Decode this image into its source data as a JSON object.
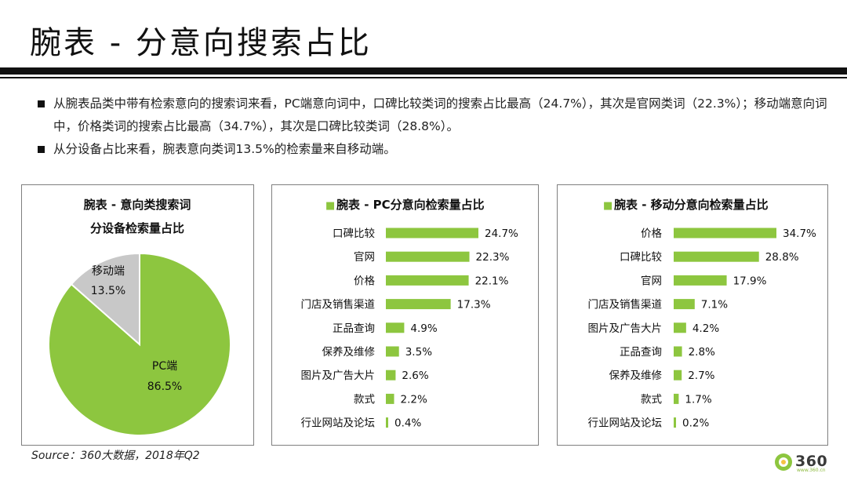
{
  "page": {
    "title": "腕表 - 分意向搜索占比",
    "bullets": [
      "从腕表品类中带有检索意向的搜索词来看，PC端意向词中，口碑比较类词的搜索占比最高（24.7%），其次是官网类词（22.3%）；移动端意向词中，价格类词的搜索占比最高（34.7%），其次是口碑比较类词（28.8%）。",
      "从分设备占比来看，腕表意向类词13.5%的检索量来自移动端。"
    ],
    "source": "Source：360大数据，2018年Q2",
    "logo_text": "360",
    "logo_sub": "www.360.cn"
  },
  "colors": {
    "green": "#8dc63f",
    "gray": "#c8c8c8",
    "border": "#7f7f7f"
  },
  "chart_data": [
    {
      "type": "pie",
      "title_lines": [
        "腕表 - 意向类搜索词",
        "分设备检索量占比"
      ],
      "slices": [
        {
          "label": "PC端",
          "value": 86.5,
          "display": "86.5%"
        },
        {
          "label": "移动端",
          "value": 13.5,
          "display": "13.5%"
        }
      ]
    },
    {
      "type": "bar",
      "orientation": "horizontal",
      "title": "腕表 - PC分意向检索量占比",
      "legend_marker": "■",
      "categories": [
        "口碑比较",
        "官网",
        "价格",
        "门店及销售渠道",
        "正品查询",
        "保养及维修",
        "图片及广告大片",
        "款式",
        "行业网站及论坛"
      ],
      "values": [
        24.7,
        22.3,
        22.1,
        17.3,
        4.9,
        3.5,
        2.6,
        2.2,
        0.4
      ],
      "value_labels": [
        "24.7%",
        "22.3%",
        "22.1%",
        "17.3%",
        "4.9%",
        "3.5%",
        "2.6%",
        "2.2%",
        "0.4%"
      ]
    },
    {
      "type": "bar",
      "orientation": "horizontal",
      "title": "腕表 - 移动分意向检索量占比",
      "legend_marker": "■",
      "categories": [
        "价格",
        "口碑比较",
        "官网",
        "门店及销售渠道",
        "图片及广告大片",
        "正品查询",
        "保养及维修",
        "款式",
        "行业网站及论坛"
      ],
      "values": [
        34.7,
        28.8,
        17.9,
        7.1,
        4.2,
        2.8,
        2.7,
        1.7,
        0.2
      ],
      "value_labels": [
        "34.7%",
        "28.8%",
        "17.9%",
        "7.1%",
        "4.2%",
        "2.8%",
        "2.7%",
        "1.7%",
        "0.2%"
      ]
    }
  ]
}
